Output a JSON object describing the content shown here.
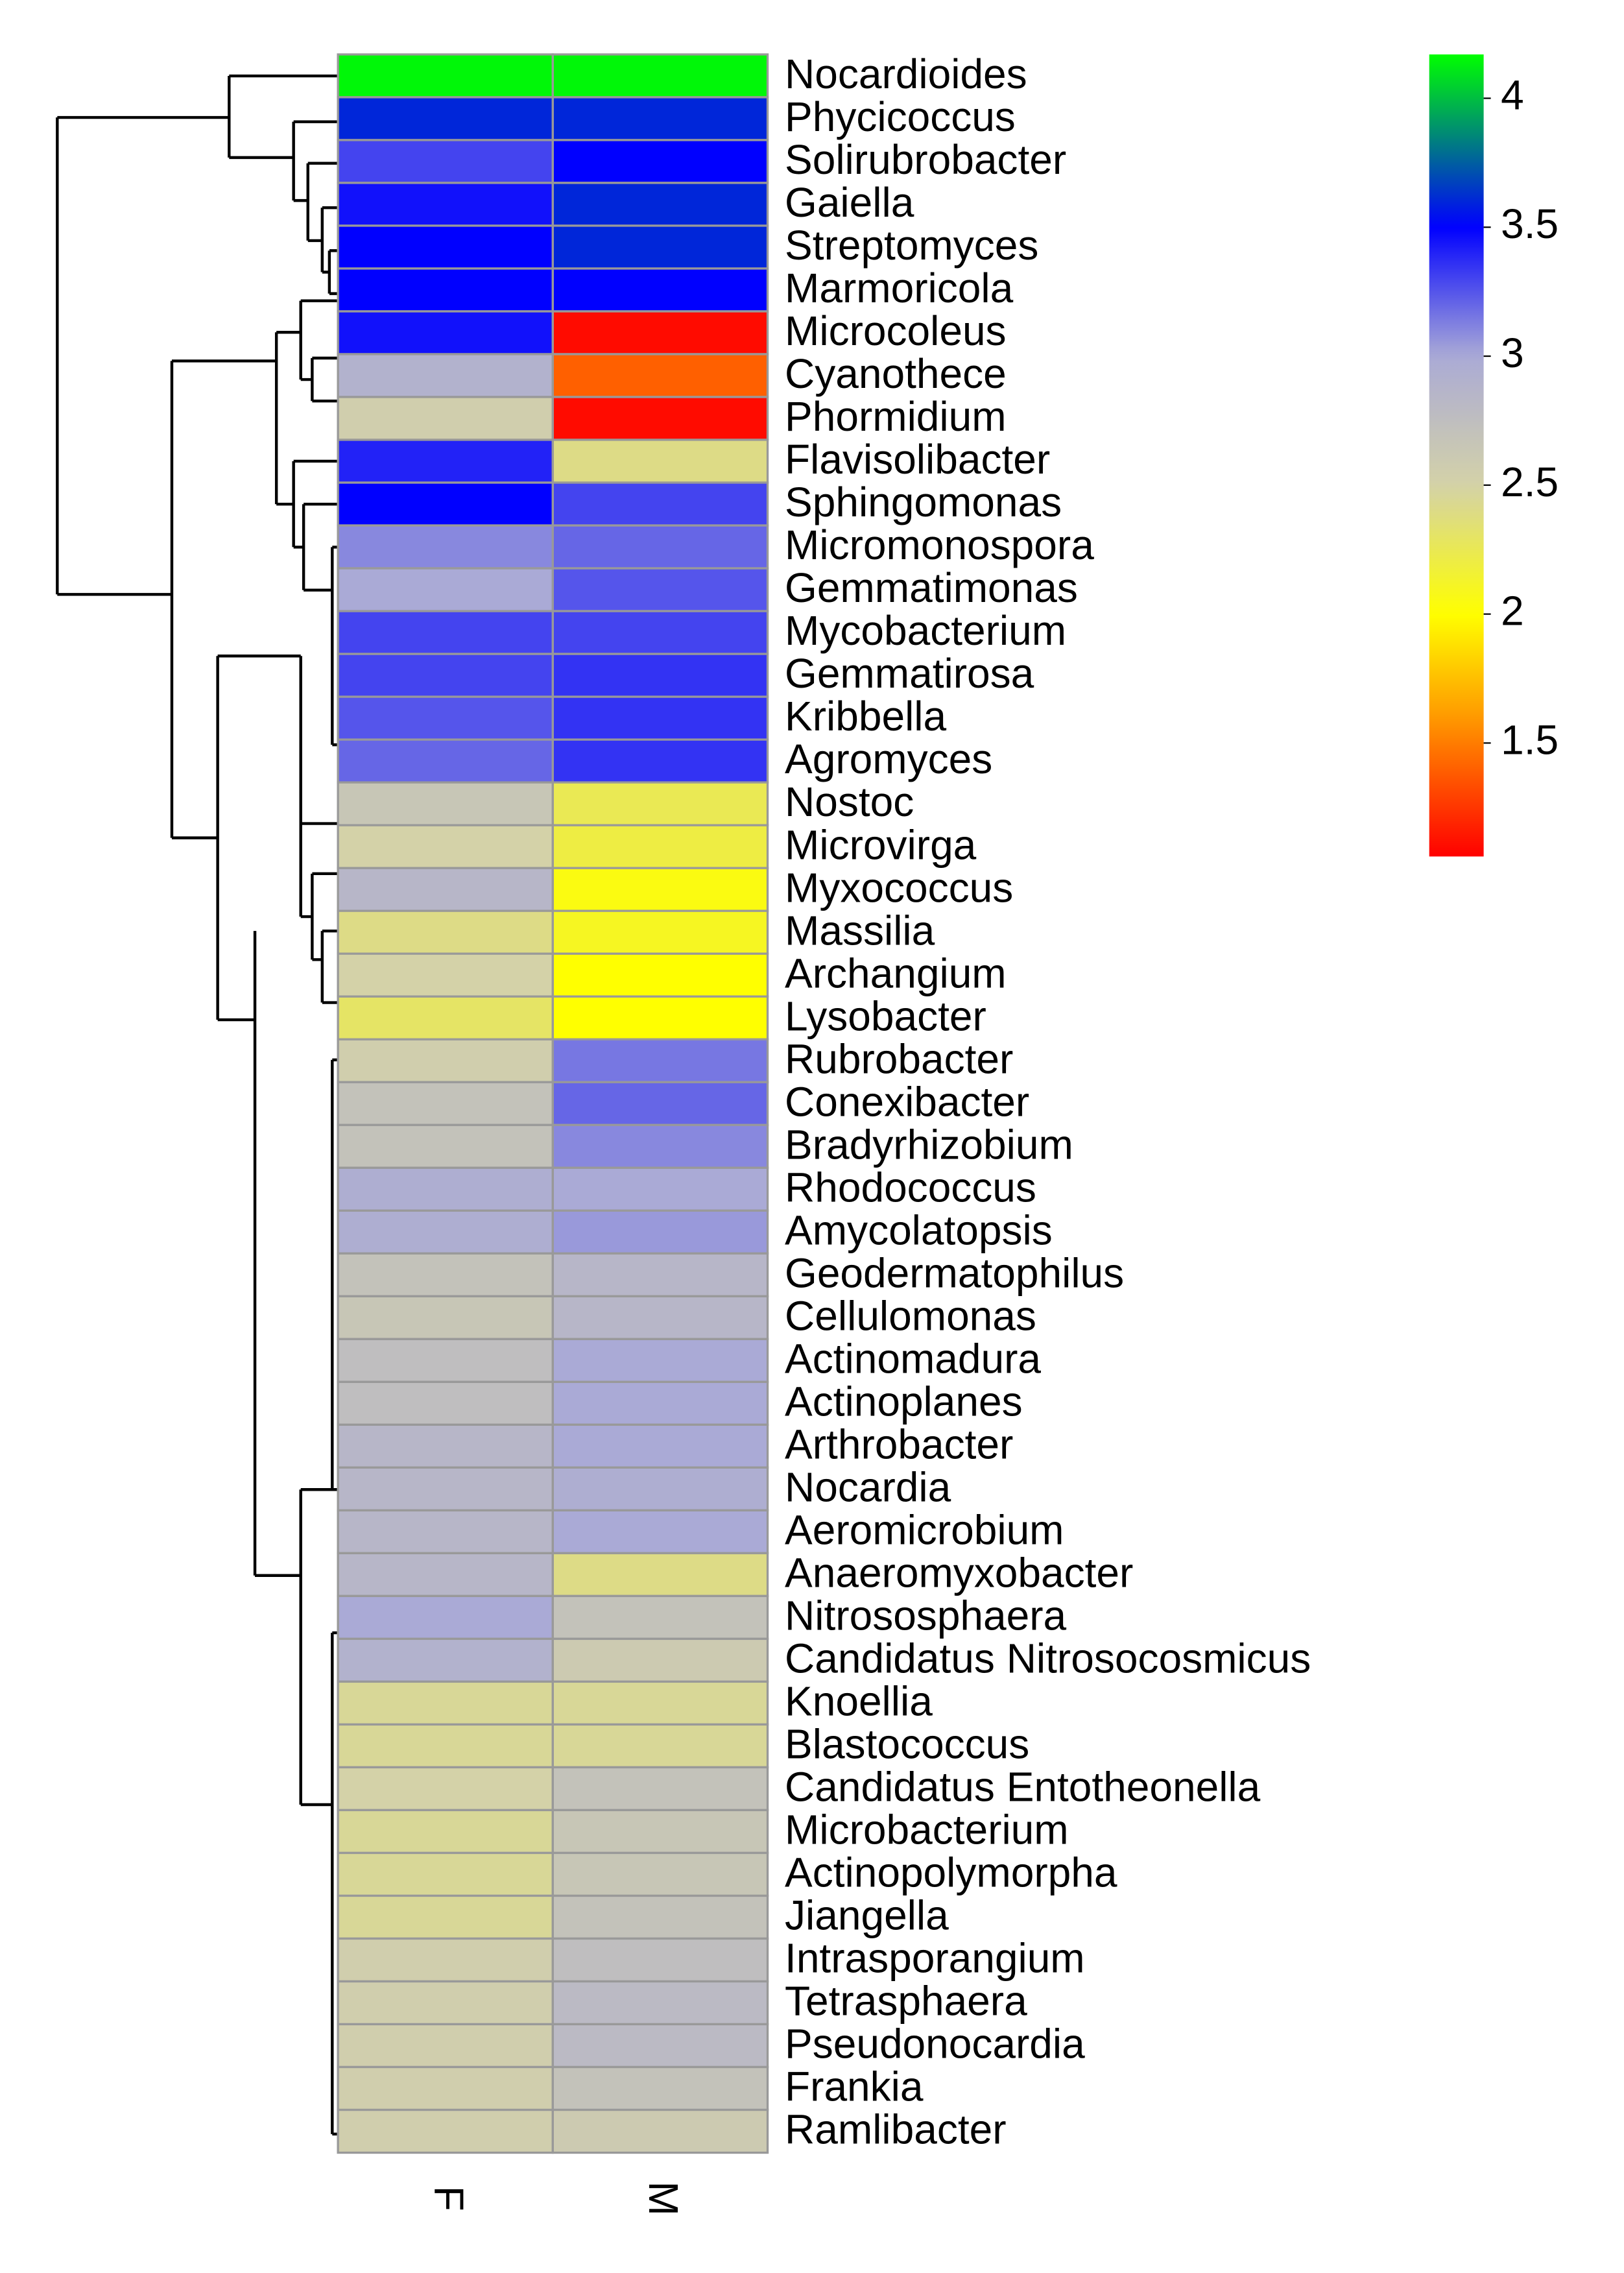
{
  "chart_data": {
    "type": "heatmap",
    "x": [
      "F",
      "M"
    ],
    "y": [
      "Nocardioides",
      "Phycicoccus",
      "Solirubrobacter",
      "Gaiella",
      "Streptomyces",
      "Marmoricola",
      "Microcoleus",
      "Cyanothece",
      "Phormidium",
      "Flavisolibacter",
      "Sphingomonas",
      "Micromonospora",
      "Gemmatimonas",
      "Mycobacterium",
      "Gemmatirosa",
      "Kribbella",
      "Agromyces",
      "Nostoc",
      "Microvirga",
      "Myxococcus",
      "Massilia",
      "Archangium",
      "Lysobacter",
      "Rubrobacter",
      "Conexibacter",
      "Bradyrhizobium",
      "Rhodococcus",
      "Amycolatopsis",
      "Geodermatophilus",
      "Cellulomonas",
      "Actinomadura",
      "Actinoplanes",
      "Arthrobacter",
      "Nocardia",
      "Aeromicrobium",
      "Anaeromyxobacter",
      "Nitrososphaera",
      "Candidatus Nitrosocosmicus",
      "Knoellia",
      "Blastococcus",
      "Candidatus Entotheonella",
      "Microbacterium",
      "Actinopolymorpha",
      "Jiangella",
      "Intrasporangium",
      "Tetrasphaera",
      "Pseudonocardia",
      "Frankia",
      "Ramlibacter"
    ],
    "z": [
      [
        4.15,
        4.15
      ],
      [
        3.6,
        3.6
      ],
      [
        3.3,
        3.5
      ],
      [
        3.45,
        3.6
      ],
      [
        3.5,
        3.6
      ],
      [
        3.5,
        3.5
      ],
      [
        3.45,
        1.1
      ],
      [
        2.9,
        1.4
      ],
      [
        2.55,
        1.1
      ],
      [
        3.4,
        2.4
      ],
      [
        3.5,
        3.3
      ],
      [
        3.1,
        3.2
      ],
      [
        3.0,
        3.25
      ],
      [
        3.3,
        3.3
      ],
      [
        3.3,
        3.35
      ],
      [
        3.25,
        3.35
      ],
      [
        3.2,
        3.35
      ],
      [
        2.65,
        2.25
      ],
      [
        2.5,
        2.2
      ],
      [
        2.85,
        2.05
      ],
      [
        2.4,
        2.1
      ],
      [
        2.5,
        2.0
      ],
      [
        2.3,
        2.0
      ],
      [
        2.55,
        3.15
      ],
      [
        2.7,
        3.2
      ],
      [
        2.7,
        3.1
      ],
      [
        2.95,
        3.0
      ],
      [
        2.95,
        3.05
      ],
      [
        2.7,
        2.85
      ],
      [
        2.65,
        2.85
      ],
      [
        2.75,
        3.0
      ],
      [
        2.75,
        3.0
      ],
      [
        2.85,
        3.0
      ],
      [
        2.85,
        2.95
      ],
      [
        2.85,
        3.0
      ],
      [
        2.85,
        2.4
      ],
      [
        3.0,
        2.7
      ],
      [
        2.9,
        2.6
      ],
      [
        2.45,
        2.45
      ],
      [
        2.45,
        2.45
      ],
      [
        2.5,
        2.7
      ],
      [
        2.45,
        2.65
      ],
      [
        2.45,
        2.65
      ],
      [
        2.45,
        2.7
      ],
      [
        2.55,
        2.75
      ],
      [
        2.55,
        2.8
      ],
      [
        2.55,
        2.8
      ],
      [
        2.55,
        2.7
      ],
      [
        2.55,
        2.6
      ]
    ],
    "zlim": [
      1.06,
      4.17
    ],
    "zticks": [
      4,
      3.5,
      3,
      2.5,
      2,
      1.5
    ],
    "colorscale": [
      [
        1.06,
        "#ff0000"
      ],
      [
        1.6,
        "#ff9900"
      ],
      [
        2.0,
        "#ffff00"
      ],
      [
        2.5,
        "#d4d2a8"
      ],
      [
        3.0,
        "#aaaad6"
      ],
      [
        3.5,
        "#0000ff"
      ],
      [
        4.17,
        "#00ff00"
      ]
    ]
  }
}
